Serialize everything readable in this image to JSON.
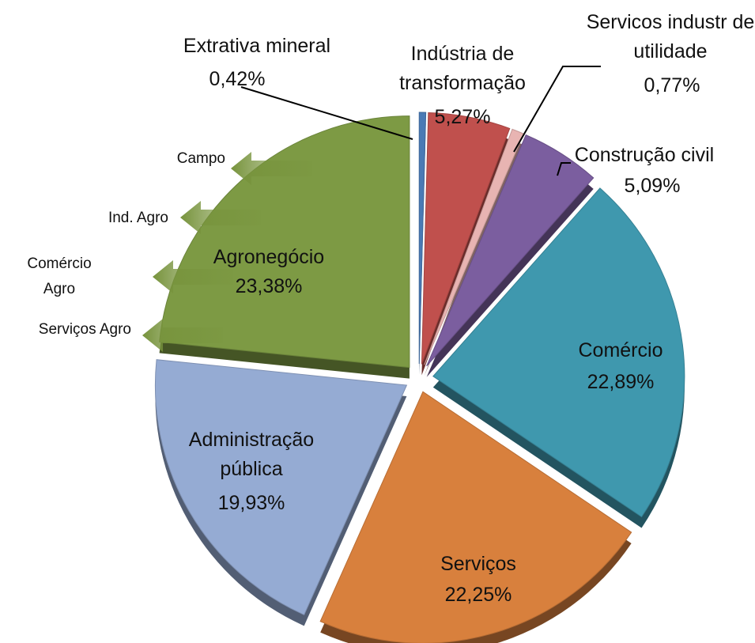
{
  "chart_data": {
    "type": "pie",
    "categories": [
      "Extrativa mineral",
      "Indústria de transformação",
      "Servicos industr de utilidade",
      "Construção civil",
      "Comércio",
      "Serviços",
      "Administração pública",
      "Agronegócio"
    ],
    "values": [
      0.42,
      5.27,
      0.77,
      5.09,
      22.89,
      22.25,
      19.93,
      23.38
    ],
    "value_labels": [
      "0,42%",
      "5,27%",
      "0,77%",
      "5,09%",
      "22,89%",
      "22,25%",
      "19,93%",
      "23,38%"
    ],
    "colors": [
      "#4a7ab5",
      "#c0504d",
      "#e8b4b2",
      "#7b5e9f",
      "#3f98ae",
      "#d8803d",
      "#95abd3",
      "#7d9a44"
    ],
    "sub_labels": [
      "Campo",
      "Ind. Agro",
      "Comércio Agro",
      "Serviços Agro"
    ]
  }
}
